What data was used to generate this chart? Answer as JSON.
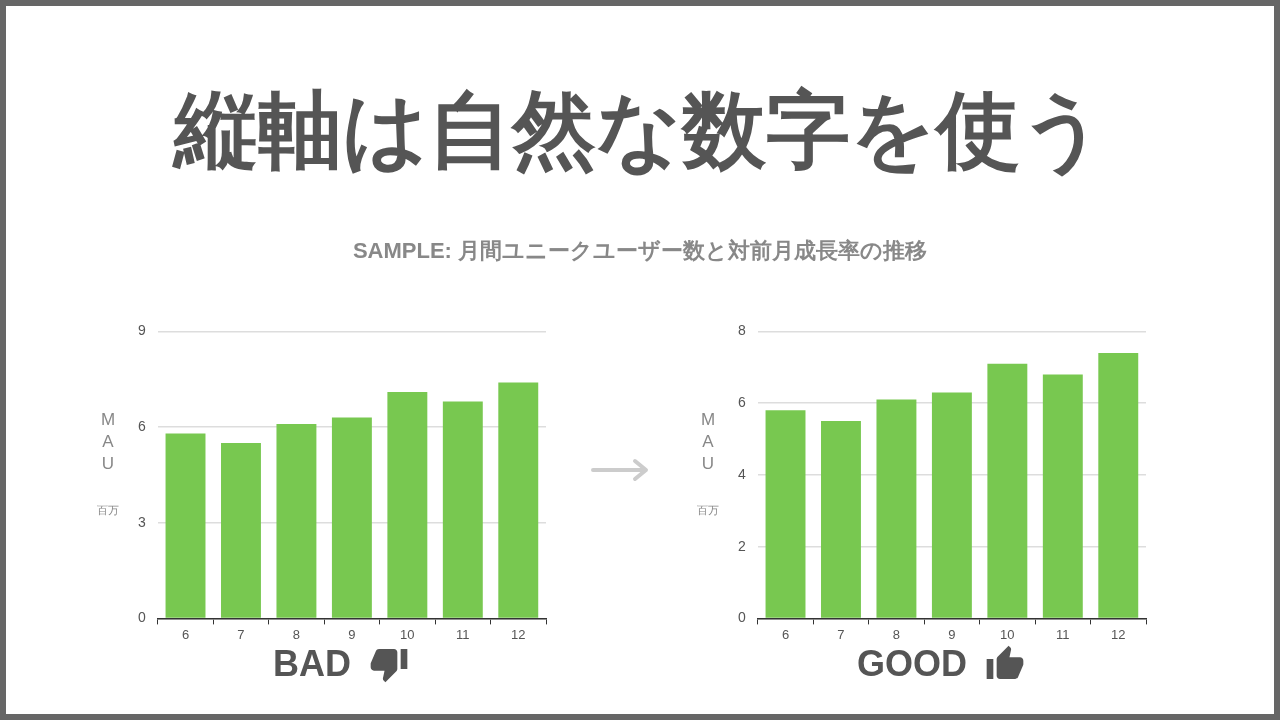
{
  "chart_data": [
    {
      "type": "bar",
      "title": "縦軸は自然な数字を使う",
      "subtitle": "SAMPLE:  月間ユニークユーザー数と対前月成長率の推移",
      "categories": [
        "6",
        "7",
        "8",
        "9",
        "10",
        "11",
        "12"
      ],
      "values": [
        5.8,
        5.5,
        6.1,
        6.3,
        7.1,
        6.8,
        7.4
      ],
      "color": "#78c850",
      "ylim": [
        0,
        9
      ],
      "yticks": [
        0,
        3,
        6,
        9
      ],
      "grid": "y",
      "ylabel": "MAU",
      "annotations": [
        "百万",
        "BAD"
      ]
    },
    {
      "type": "bar",
      "categories": [
        "6",
        "7",
        "8",
        "9",
        "10",
        "11",
        "12"
      ],
      "values": [
        5.8,
        5.5,
        6.1,
        6.3,
        7.1,
        6.8,
        7.4
      ],
      "color": "#78c850",
      "ylim": [
        0,
        8
      ],
      "yticks": [
        0,
        2,
        4,
        6,
        8
      ],
      "grid": "y",
      "ylabel": "MAU",
      "annotations": [
        "百万",
        "GOOD"
      ]
    }
  ]
}
